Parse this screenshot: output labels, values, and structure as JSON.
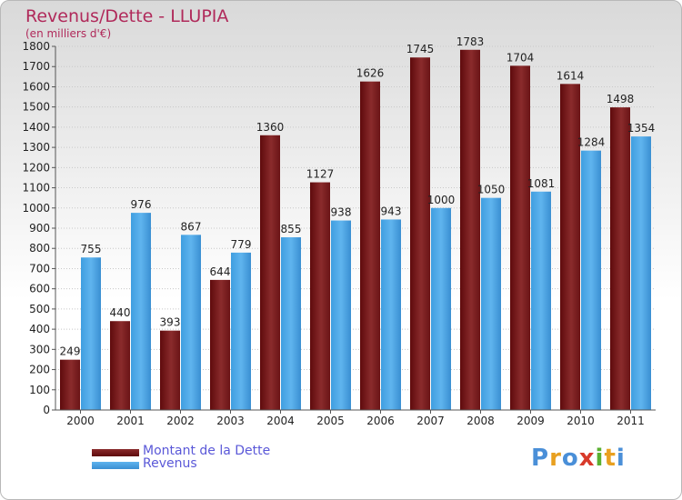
{
  "logo_text": "Proxiti",
  "chart_data": {
    "type": "bar",
    "title": "Revenus/Dette - LLUPIA",
    "subtitle": "(en milliers d'€)",
    "categories": [
      "2000",
      "2001",
      "2002",
      "2003",
      "2004",
      "2005",
      "2006",
      "2007",
      "2008",
      "2009",
      "2010",
      "2011"
    ],
    "series": [
      {
        "name": "Montant de la Dette",
        "color": "#7a1a1c",
        "values": [
          249,
          440,
          393,
          644,
          1360,
          1127,
          1626,
          1745,
          1783,
          1704,
          1614,
          1498
        ]
      },
      {
        "name": "Revenus",
        "color": "#4aa6e6",
        "values": [
          755,
          976,
          867,
          779,
          855,
          938,
          943,
          1000,
          1050,
          1081,
          1284,
          1354
        ]
      }
    ],
    "ylim": [
      0,
      1800
    ],
    "ytick_step": 100,
    "grid": true,
    "legend": "bottom-left"
  }
}
